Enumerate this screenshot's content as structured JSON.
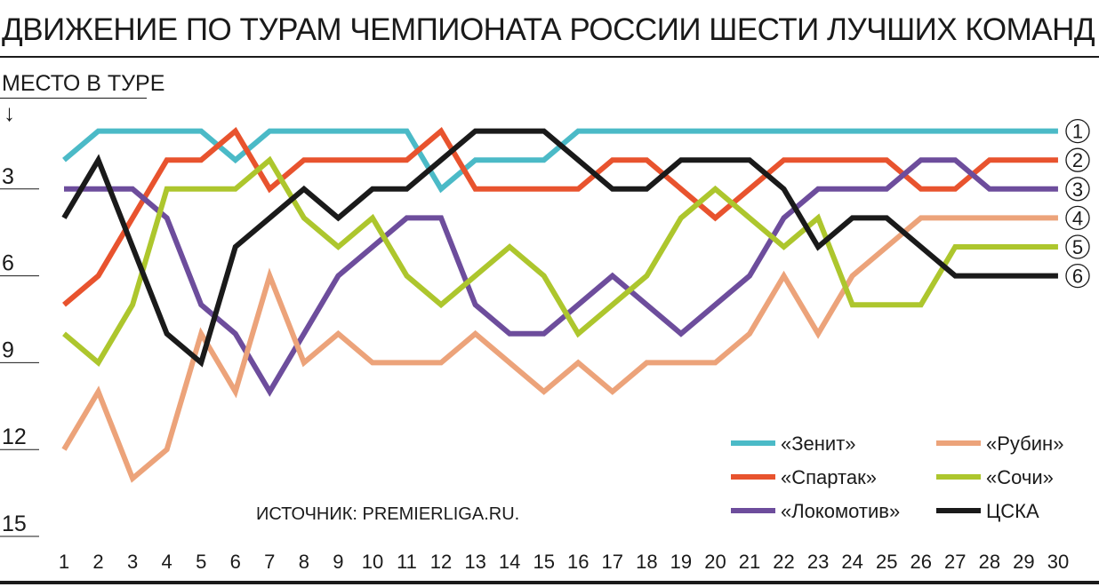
{
  "header": {
    "title": "ДВИЖЕНИЕ ПО ТУРАМ ЧЕМПИОНАТА РОССИИ ШЕСТИ ЛУЧШИХ КОМАНД"
  },
  "source_text": "ИСТОЧНИК: PREMIERLIGA.RU.",
  "chart_data": {
    "type": "line",
    "title": "ДВИЖЕНИЕ ПО ТУРАМ ЧЕМПИОНАТА РОССИИ ШЕСТИ ЛУЧШИХ КОМАНД",
    "ylabel": "МЕСТО В ТУРЕ",
    "y_arrow": "↓",
    "y_inverted": true,
    "ylim": [
      0,
      15
    ],
    "y_ticks": [
      3,
      6,
      9,
      12,
      15
    ],
    "x": [
      1,
      2,
      3,
      4,
      5,
      6,
      7,
      8,
      9,
      10,
      11,
      12,
      13,
      14,
      15,
      16,
      17,
      18,
      19,
      20,
      21,
      22,
      23,
      24,
      25,
      26,
      27,
      28,
      29,
      30
    ],
    "legend_placement": "bottom-right",
    "grid": false,
    "series": [
      {
        "name": "«Зенит»",
        "color": "#4bbac7",
        "values": [
          2,
          1,
          1,
          1,
          1,
          2,
          1,
          1,
          1,
          1,
          1,
          3,
          2,
          2,
          2,
          1,
          1,
          1,
          1,
          1,
          1,
          1,
          1,
          1,
          1,
          1,
          1,
          1,
          1,
          1
        ]
      },
      {
        "name": "«Спартак»",
        "color": "#e8532e",
        "values": [
          7,
          6,
          4,
          2,
          2,
          1,
          3,
          2,
          2,
          2,
          2,
          1,
          3,
          3,
          3,
          3,
          2,
          2,
          3,
          4,
          3,
          2,
          2,
          2,
          2,
          3,
          3,
          2,
          2,
          2
        ]
      },
      {
        "name": "«Локомотив»",
        "color": "#6d4d9c",
        "values": [
          3,
          3,
          3,
          4,
          7,
          8,
          10,
          8,
          6,
          5,
          4,
          4,
          7,
          8,
          8,
          7,
          6,
          7,
          8,
          7,
          6,
          4,
          3,
          3,
          3,
          2,
          2,
          3,
          3,
          3
        ]
      },
      {
        "name": "«Рубин»",
        "color": "#eca37a",
        "values": [
          12,
          10,
          13,
          12,
          8,
          10,
          6,
          9,
          8,
          9,
          9,
          9,
          8,
          9,
          10,
          9,
          10,
          9,
          9,
          9,
          8,
          6,
          8,
          6,
          5,
          4,
          4,
          4,
          4,
          4
        ]
      },
      {
        "name": "«Сочи»",
        "color": "#adc62d",
        "values": [
          8,
          9,
          7,
          3,
          3,
          3,
          2,
          4,
          5,
          4,
          6,
          7,
          6,
          5,
          6,
          8,
          7,
          6,
          4,
          3,
          4,
          5,
          4,
          7,
          7,
          7,
          5,
          5,
          5,
          5
        ]
      },
      {
        "name": "ЦСКА",
        "color": "#1a1a1a",
        "values": [
          4,
          2,
          5,
          8,
          9,
          5,
          4,
          3,
          4,
          3,
          3,
          2,
          1,
          1,
          1,
          2,
          3,
          3,
          2,
          2,
          2,
          3,
          5,
          4,
          4,
          5,
          6,
          6,
          6,
          6
        ]
      }
    ],
    "end_labels": [
      "1",
      "2",
      "3",
      "4",
      "5",
      "6"
    ]
  }
}
